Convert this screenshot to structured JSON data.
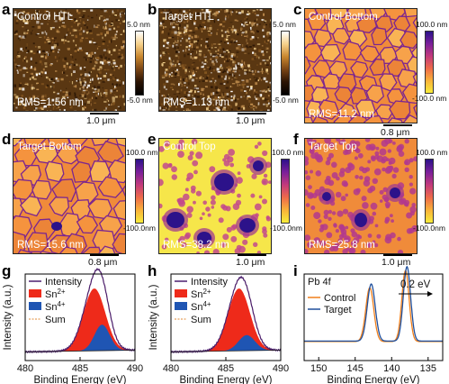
{
  "panels": {
    "a": {
      "letter": "a",
      "title": "Control HTL",
      "rms": "RMS=1.56 nm",
      "scale": "1.0 μm",
      "cbar_top": "5.0 nm",
      "cbar_bottom": "-5.0 nm",
      "palette": "brown"
    },
    "b": {
      "letter": "b",
      "title": "Target HTL",
      "rms": "RMS=1.13 nm",
      "scale": "1.0 μm",
      "cbar_top": "5.0 nm",
      "cbar_bottom": "-5.0 nm",
      "palette": "brown"
    },
    "c": {
      "letter": "c",
      "title": "Control Bottom",
      "rms": "RMS=11.2 nm",
      "scale": "0.8 μm",
      "cbar_top": "100.0 nm",
      "cbar_bottom": "-100.0 nm",
      "palette": "plasma"
    },
    "d": {
      "letter": "d",
      "title": "Target Bottom",
      "rms": "RMS=15.6 nm",
      "scale": "0.8 μm",
      "cbar_top": "100.0 nm",
      "cbar_bottom": "-100.0nm",
      "palette": "plasma"
    },
    "e": {
      "letter": "e",
      "title": "Control Top",
      "rms": "RMS=38.2 nm",
      "scale": "1.0 μm",
      "cbar_top": "100.0 nm",
      "cbar_bottom": "-100.0nm",
      "palette": "plasma"
    },
    "f": {
      "letter": "f",
      "title": "Target Top",
      "rms": "RMS=25.8 nm",
      "scale": "1.0 μm",
      "cbar_top": "100.0 nm",
      "cbar_bottom": "-100.0nm",
      "palette": "plasma"
    }
  },
  "colors": {
    "intensity": "#4b1f6f",
    "sn2": "#ee2a1a",
    "sn4": "#1f55b3",
    "sum": "#e8a15e",
    "control": "#f07f1a",
    "target": "#1f4f9c"
  },
  "chart_data": [
    {
      "panel": "g",
      "type": "area",
      "xlabel": "Binding Energy (eV)",
      "ylabel": "Intensity (a.u.)",
      "xlim": [
        480,
        490
      ],
      "x_ticks": [
        "480",
        "485",
        "490"
      ],
      "peaks": [
        {
          "name": "Sn2+",
          "center": 486.3,
          "sigma": 1.0,
          "amplitude": 0.72
        },
        {
          "name": "Sn4+",
          "center": 487.0,
          "sigma": 0.7,
          "amplitude": 0.3
        }
      ],
      "legend": [
        "Intensity",
        "Sn2+",
        "Sn4+",
        "Sum"
      ],
      "legend_position": "top-left"
    },
    {
      "panel": "h",
      "type": "area",
      "xlabel": "Binding Energy (eV)",
      "ylabel": "Intensity (a.u.)",
      "xlim": [
        480,
        490
      ],
      "x_ticks": [
        "480",
        "485",
        "490"
      ],
      "peaks": [
        {
          "name": "Sn2+",
          "center": 486.2,
          "sigma": 1.0,
          "amplitude": 0.72
        },
        {
          "name": "Sn4+",
          "center": 486.9,
          "sigma": 0.75,
          "amplitude": 0.18
        }
      ],
      "legend": [
        "Intensity",
        "Sn2+",
        "Sn4+",
        "Sum"
      ],
      "legend_position": "top-left"
    },
    {
      "panel": "i",
      "type": "line",
      "xlabel": "Binding Energy (eV)",
      "xlim": [
        152,
        133
      ],
      "x_ticks": [
        "150",
        "145",
        "140",
        "135"
      ],
      "annotation_title": "Pb 4f",
      "shift_label": "0.2 eV",
      "series": [
        {
          "name": "Control",
          "peaks": [
            {
              "center": 143.0,
              "sigma": 0.55,
              "amplitude": 0.62
            },
            {
              "center": 138.1,
              "sigma": 0.5,
              "amplitude": 0.82
            }
          ]
        },
        {
          "name": "Target",
          "peaks": [
            {
              "center": 142.8,
              "sigma": 0.55,
              "amplitude": 0.66
            },
            {
              "center": 137.9,
              "sigma": 0.5,
              "amplitude": 0.86
            }
          ]
        }
      ],
      "legend_position": "top-left"
    }
  ]
}
